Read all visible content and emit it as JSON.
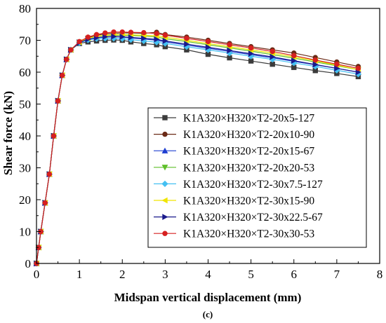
{
  "chart_data": {
    "type": "line",
    "caption": "(c)",
    "xlabel": "Midspan vertical displacement (mm)",
    "ylabel": "Shear force (kN)",
    "xlim": [
      0,
      8
    ],
    "ylim": [
      0,
      80
    ],
    "xticks": [
      "0",
      "1",
      "2",
      "3",
      "4",
      "5",
      "6",
      "7",
      "8"
    ],
    "yticks": [
      "0",
      "10",
      "20",
      "30",
      "40",
      "50",
      "60",
      "70",
      "80"
    ],
    "grid": false,
    "legend_position": "lower-right",
    "series": [
      {
        "name": "K1A320×H320×T2-20x5-127",
        "color": "#3b3b3b",
        "marker": "square",
        "x": [
          0,
          0.05,
          0.1,
          0.2,
          0.3,
          0.4,
          0.5,
          0.6,
          0.7,
          0.8,
          1.0,
          1.2,
          1.4,
          1.6,
          1.8,
          2.0,
          2.2,
          2.5,
          2.8,
          3.0,
          3.5,
          4.0,
          4.5,
          5.0,
          5.5,
          6.0,
          6.5,
          7.0,
          7.5
        ],
        "y": [
          0,
          5,
          10,
          19,
          28,
          40,
          51,
          59,
          64,
          67,
          69,
          69.5,
          69.8,
          70,
          70.1,
          70,
          69.5,
          69,
          68.6,
          68,
          67,
          65.6,
          64.5,
          63.5,
          62.5,
          61.5,
          60.5,
          59.6,
          58.6
        ]
      },
      {
        "name": "K1A320×H320×T2-20x10-90",
        "color": "#6b2a16",
        "marker": "circle",
        "x": [
          0,
          0.05,
          0.1,
          0.2,
          0.3,
          0.4,
          0.5,
          0.6,
          0.7,
          0.8,
          1.0,
          1.2,
          1.4,
          1.6,
          1.8,
          2.0,
          2.2,
          2.5,
          2.8,
          3.0,
          3.5,
          4.0,
          4.5,
          5.0,
          5.5,
          6.0,
          6.5,
          7.0,
          7.5
        ],
        "y": [
          0,
          5,
          10,
          19,
          28,
          40,
          51,
          59,
          64,
          67,
          69.5,
          70.8,
          71.6,
          72,
          72.2,
          72.3,
          72.3,
          72.2,
          72.5,
          71.8,
          71,
          70,
          69,
          68,
          67,
          66,
          64.6,
          63.2,
          61.8
        ]
      },
      {
        "name": "K1A320×H320×T2-20x15-67",
        "color": "#1f3fd1",
        "marker": "triangle-up",
        "x": [
          0,
          0.05,
          0.1,
          0.2,
          0.3,
          0.4,
          0.5,
          0.6,
          0.7,
          0.8,
          1.0,
          1.2,
          1.4,
          1.6,
          1.8,
          2.0,
          2.2,
          2.5,
          2.8,
          3.0,
          3.5,
          4.0,
          4.5,
          5.0,
          5.5,
          6.0,
          6.5,
          7.0,
          7.5
        ],
        "y": [
          0,
          5,
          10,
          19,
          28,
          40,
          51,
          59,
          64,
          67,
          69.3,
          70.3,
          70.8,
          71,
          71.1,
          71,
          70.7,
          70.4,
          70,
          69.5,
          68.5,
          67.5,
          66.5,
          65.5,
          64.5,
          63.4,
          62.3,
          61.2,
          60
        ]
      },
      {
        "name": "K1A320×H320×T2-20x20-53",
        "color": "#5fbf2a",
        "marker": "triangle-down",
        "x": [
          0,
          0.05,
          0.1,
          0.2,
          0.3,
          0.4,
          0.5,
          0.6,
          0.7,
          0.8,
          1.0,
          1.2,
          1.4,
          1.6,
          1.8,
          2.0,
          2.2,
          2.5,
          2.8,
          3.0,
          3.5,
          4.0,
          4.5,
          5.0,
          5.5,
          6.0,
          6.5,
          7.0,
          7.5
        ],
        "y": [
          0,
          5,
          10,
          19,
          28,
          40,
          51,
          59,
          64,
          67,
          69.4,
          70.6,
          71.2,
          71.5,
          71.6,
          71.6,
          71.5,
          71.3,
          71,
          70.5,
          69.6,
          68.6,
          67.6,
          66.6,
          65.5,
          64.4,
          63.2,
          62,
          60.8
        ]
      },
      {
        "name": "K1A320×H320×T2-30x7.5-127",
        "color": "#44c0f2",
        "marker": "diamond",
        "x": [
          0,
          0.05,
          0.1,
          0.2,
          0.3,
          0.4,
          0.5,
          0.6,
          0.7,
          0.8,
          1.0,
          1.2,
          1.4,
          1.6,
          1.8,
          2.0,
          2.2,
          2.5,
          2.8,
          3.0,
          3.5,
          4.0,
          4.5,
          5.0,
          5.5,
          6.0,
          6.5,
          7.0,
          7.5
        ],
        "y": [
          0,
          5,
          10,
          19,
          28,
          40,
          51,
          59,
          64,
          67,
          69.2,
          70.1,
          70.5,
          70.6,
          70.6,
          70.5,
          70.2,
          69.8,
          69.4,
          69,
          68,
          67,
          66,
          65,
          64,
          62.9,
          61.8,
          60.6,
          59.4
        ]
      },
      {
        "name": "K1A320×H320×T2-30x15-90",
        "color": "#f0e500",
        "marker": "triangle-left",
        "x": [
          0,
          0.05,
          0.1,
          0.2,
          0.3,
          0.4,
          0.5,
          0.6,
          0.7,
          0.8,
          1.0,
          1.2,
          1.4,
          1.6,
          1.8,
          2.0,
          2.2,
          2.5,
          2.8,
          3.0,
          3.5,
          4.0,
          4.5,
          5.0,
          5.5,
          6.0,
          6.5,
          7.0,
          7.5
        ],
        "y": [
          0,
          5,
          10,
          19,
          28,
          40,
          51,
          59,
          64,
          67,
          69.4,
          70.6,
          71.3,
          71.6,
          71.8,
          71.8,
          71.7,
          71.6,
          71.4,
          71,
          70,
          69,
          68,
          67,
          66,
          64.8,
          63.6,
          62.2,
          60.8
        ]
      },
      {
        "name": "K1A320×H320×T2-30x22.5-67",
        "color": "#1a1a8c",
        "marker": "triangle-right",
        "x": [
          0,
          0.05,
          0.1,
          0.2,
          0.3,
          0.4,
          0.5,
          0.6,
          0.7,
          0.8,
          1.0,
          1.2,
          1.4,
          1.6,
          1.8,
          2.0,
          2.2,
          2.5,
          2.8,
          3.0,
          3.5,
          4.0,
          4.5,
          5.0,
          5.5,
          6.0,
          6.5,
          7.0,
          7.5
        ],
        "y": [
          0,
          5,
          10,
          19,
          28,
          40,
          51,
          59,
          64,
          67,
          69.3,
          70.3,
          70.8,
          71.1,
          71.2,
          71.1,
          70.9,
          70.6,
          70.3,
          69.8,
          68.8,
          67.8,
          66.8,
          65.8,
          64.8,
          63.6,
          62.4,
          61.2,
          60
        ]
      },
      {
        "name": "K1A320×H320×T2-30x30-53",
        "color": "#d62020",
        "marker": "circle",
        "x": [
          0,
          0.05,
          0.1,
          0.2,
          0.3,
          0.4,
          0.5,
          0.6,
          0.7,
          0.8,
          1.0,
          1.2,
          1.4,
          1.6,
          1.8,
          2.0,
          2.2,
          2.5,
          2.8,
          3.0,
          3.5,
          4.0,
          4.5,
          5.0,
          5.5,
          6.0,
          6.5,
          7.0,
          7.5
        ],
        "y": [
          0,
          5,
          10,
          19,
          28,
          40,
          51,
          59,
          64,
          67,
          69.6,
          71,
          71.8,
          72.3,
          72.6,
          72.6,
          72.5,
          72.4,
          72.1,
          71.6,
          70.6,
          69.6,
          68.6,
          67.6,
          66.5,
          65.2,
          63.8,
          62.5,
          61.2
        ]
      }
    ]
  }
}
